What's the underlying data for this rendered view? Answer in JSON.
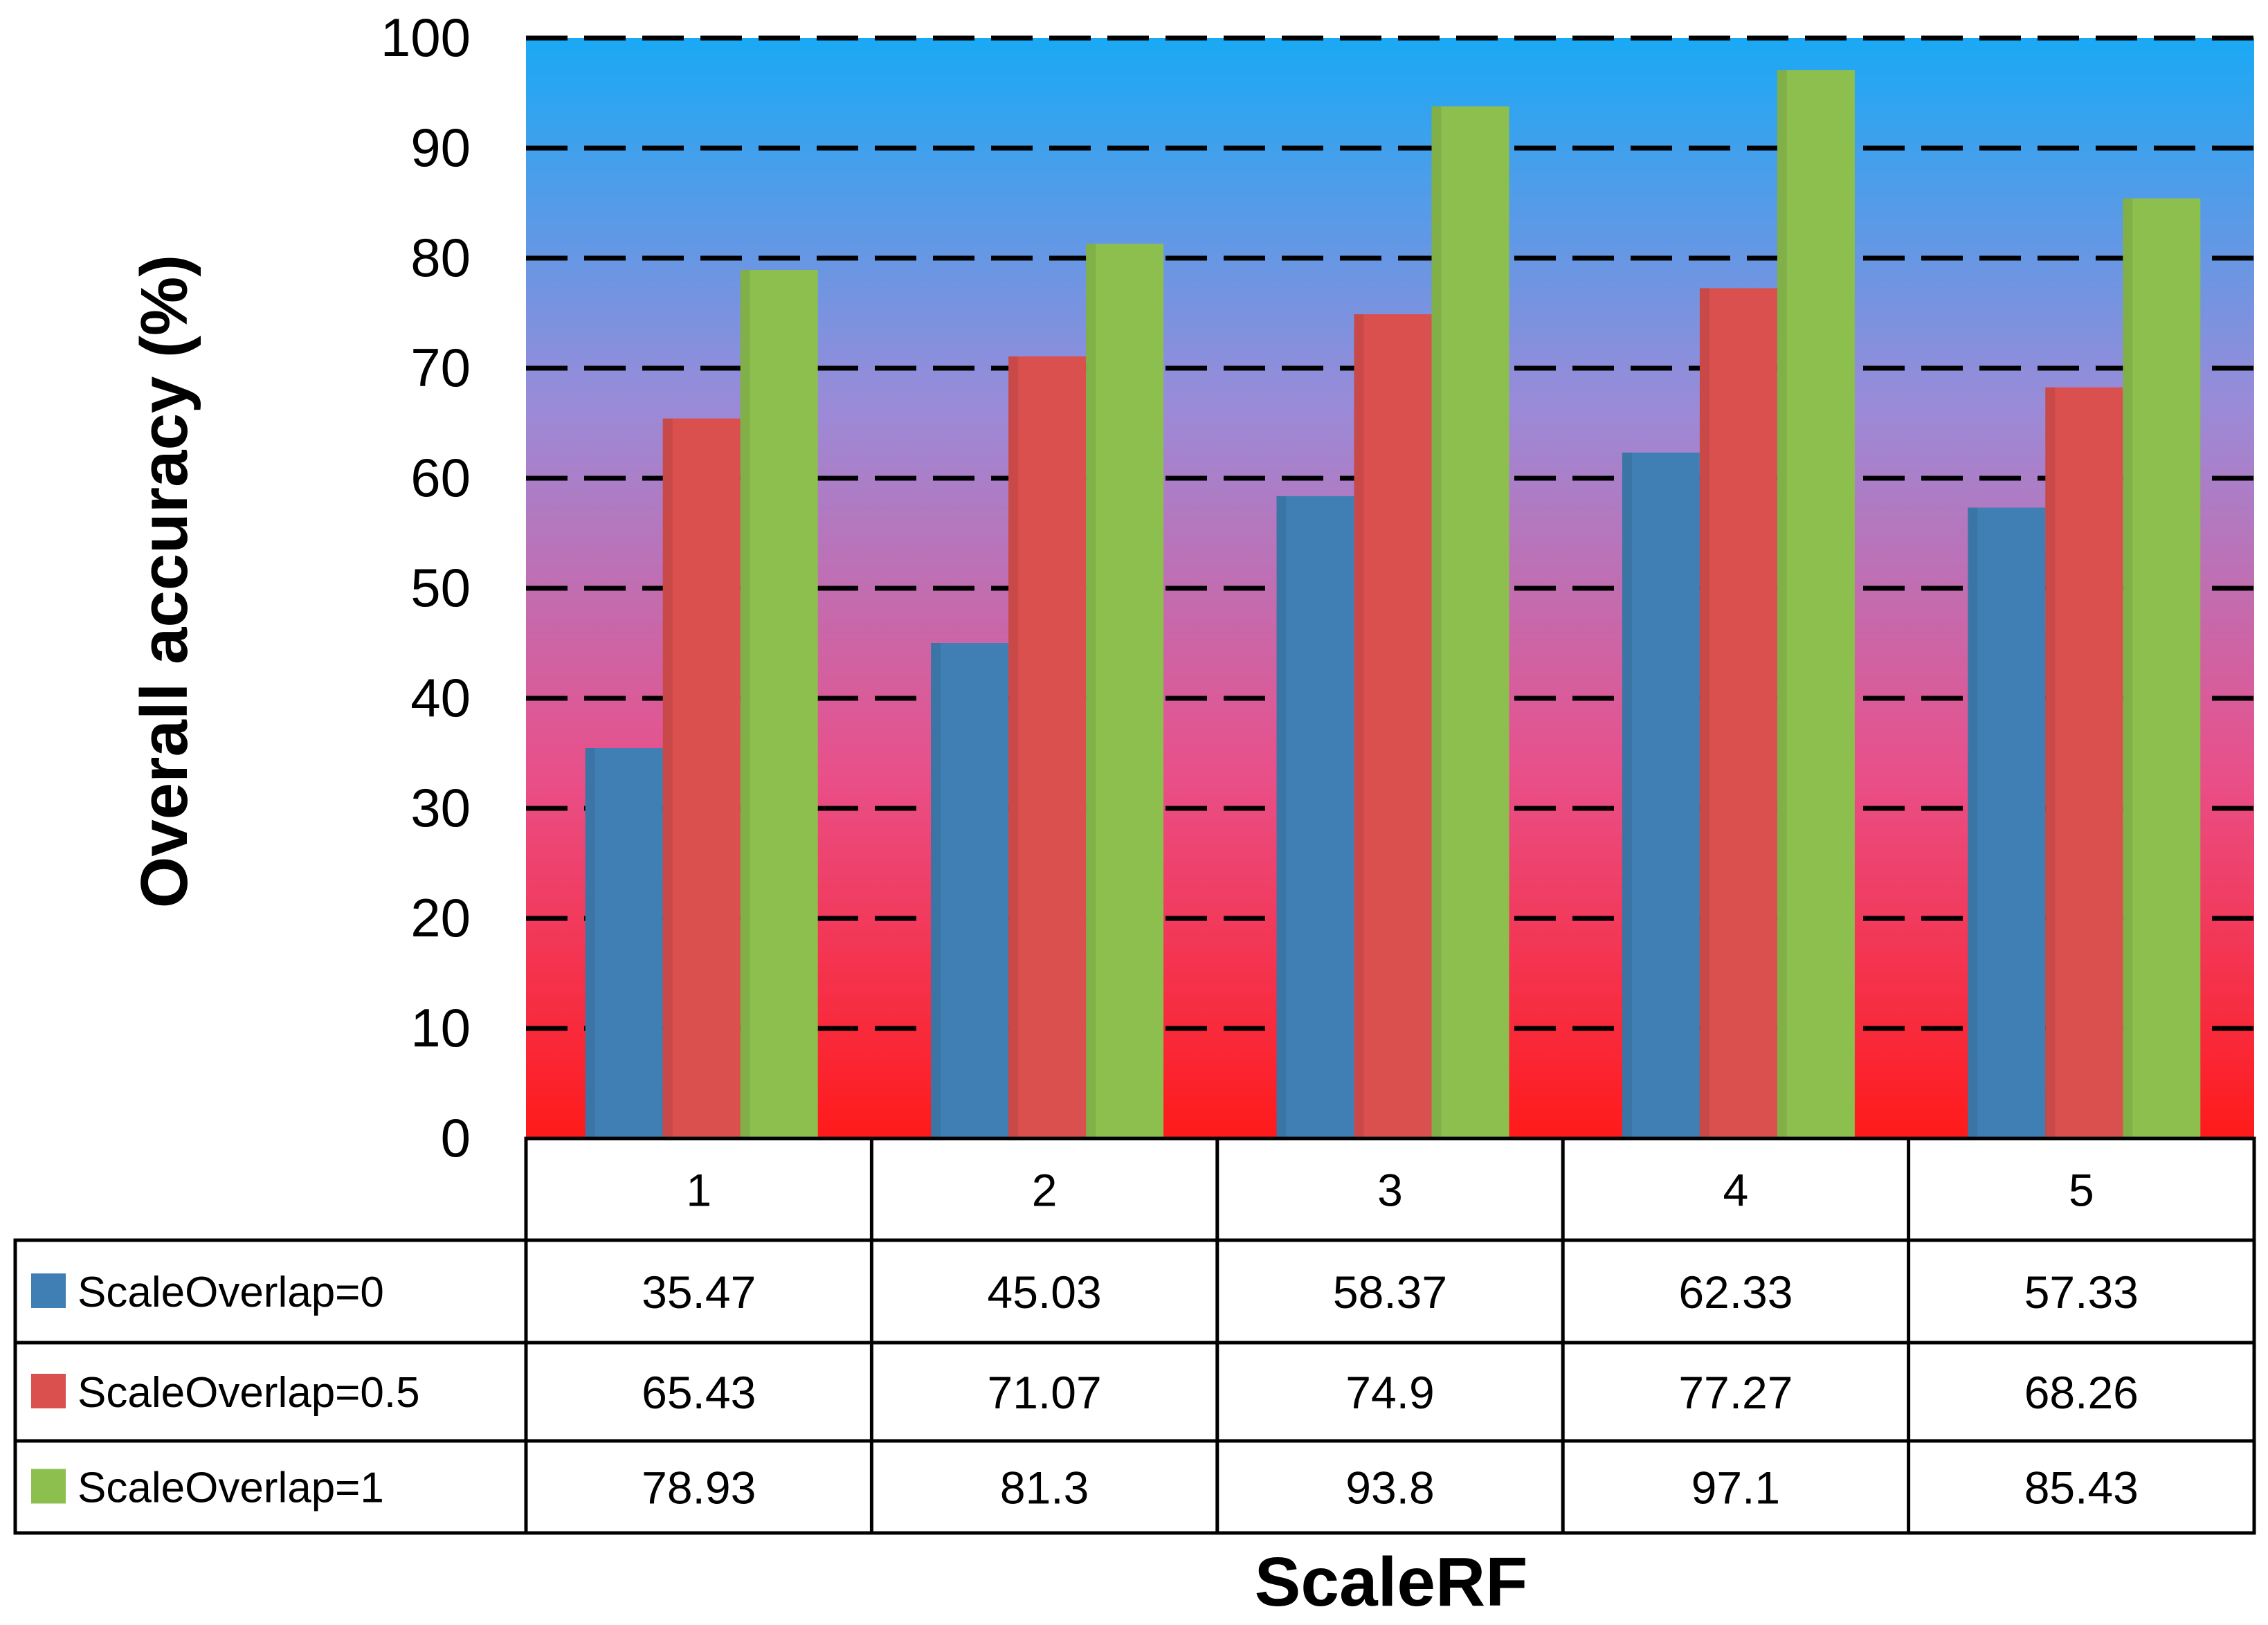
{
  "chart_data": {
    "type": "bar",
    "xlabel": "ScaleRF",
    "ylabel": "Overall accuracy (%)",
    "ylim": [
      0,
      100
    ],
    "yticks": [
      0,
      10,
      20,
      30,
      40,
      50,
      60,
      70,
      80,
      90,
      100
    ],
    "grid": "dashed horizontal",
    "legend_placement": "data table rows",
    "categories": [
      "1",
      "2",
      "3",
      "4",
      "5"
    ],
    "series": [
      {
        "name": "ScaleOverlap=0",
        "color": "#3f7fb4",
        "values": [
          35.47,
          45.03,
          58.37,
          62.33,
          57.33
        ],
        "labels": [
          "35.47",
          "45.03",
          "58.37",
          "62.33",
          "57.33"
        ]
      },
      {
        "name": "ScaleOverlap=0.5",
        "color": "#d9504e",
        "values": [
          65.43,
          71.07,
          74.9,
          77.27,
          68.26
        ],
        "labels": [
          "65.43",
          "71.07",
          "74.9",
          "77.27",
          "68.26"
        ]
      },
      {
        "name": "ScaleOverlap=1",
        "color": "#8dbf4f",
        "values": [
          78.93,
          81.3,
          93.8,
          97.1,
          85.43
        ],
        "labels": [
          "78.93",
          "81.3",
          "93.8",
          "97.1",
          "85.43"
        ]
      }
    ],
    "background_gradient": [
      "#1aa9f5",
      "#9a8bd8",
      "#e8508a",
      "#ff1a1a"
    ]
  }
}
